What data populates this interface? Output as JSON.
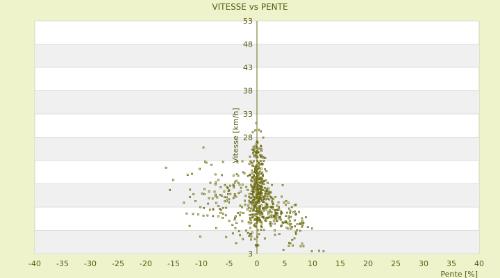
{
  "chart_data": {
    "type": "scatter",
    "title": "VITESSE vs PENTE",
    "xlabel": "Pente [%]",
    "ylabel": "Vitesse [km/h]",
    "xlim": [
      -40,
      40
    ],
    "ylim": [
      3,
      53
    ],
    "x_ticks": [
      -40,
      -35,
      -30,
      -25,
      -20,
      -15,
      -10,
      -5,
      0,
      5,
      10,
      15,
      20,
      25,
      30,
      35,
      40
    ],
    "y_ticks": [
      3,
      8,
      13,
      18,
      23,
      28,
      33,
      38,
      43,
      48,
      53
    ],
    "y_tick_labels": [
      "3",
      "",
      "",
      "",
      "",
      "28",
      "33",
      "38",
      "43",
      "48",
      "53"
    ],
    "grid": true,
    "banded_background": true,
    "colors": {
      "marker": "#6b6b10",
      "axis": "#6b6b10",
      "band": "#f0f0f0",
      "plot_bg": "#ffffff",
      "page_bg": "#eef3cc"
    },
    "points_count": 650,
    "points": []
  }
}
